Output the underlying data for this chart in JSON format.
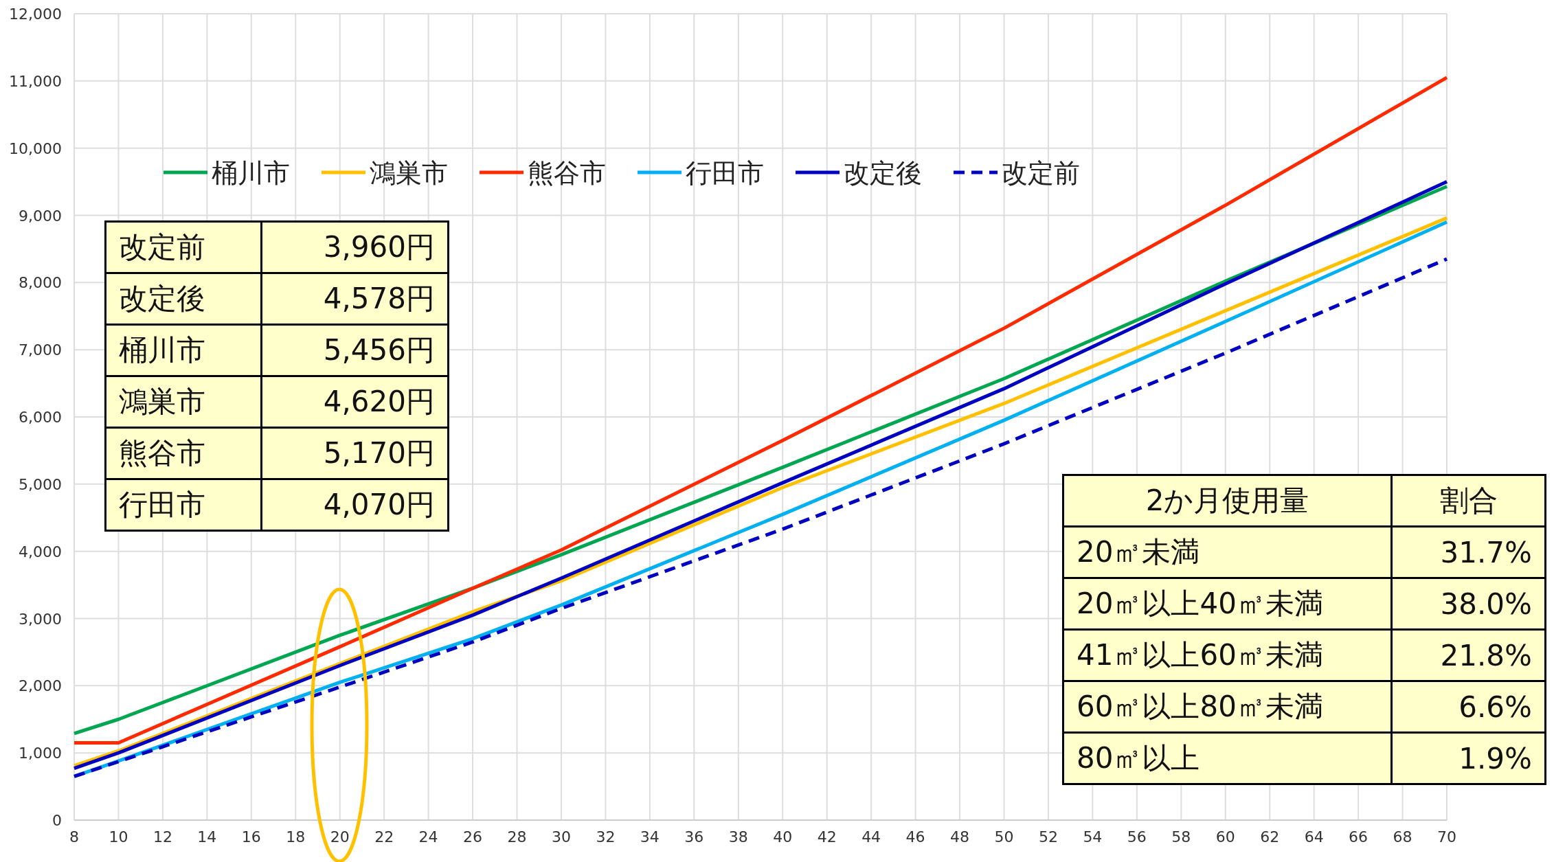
{
  "chart_data": {
    "type": "line",
    "x": [
      8,
      10,
      20,
      26,
      30,
      40,
      50,
      60,
      70
    ],
    "series": [
      {
        "name": "桶川市",
        "color": "#00a650",
        "values": [
          1290,
          1500,
          2750,
          3450,
          3950,
          5250,
          6570,
          8020,
          9430
        ]
      },
      {
        "name": "鴻巣市",
        "color": "#ffc000",
        "values": [
          810,
          1030,
          2330,
          3100,
          3560,
          4950,
          6200,
          7580,
          8960
        ]
      },
      {
        "name": "熊谷市",
        "color": "#ff2a00",
        "values": [
          1150,
          1150,
          2580,
          3450,
          4020,
          5650,
          7320,
          9150,
          11050
        ]
      },
      {
        "name": "行田市",
        "color": "#00b0f0",
        "values": [
          650,
          880,
          2050,
          2700,
          3200,
          4550,
          5950,
          7420,
          8900
        ]
      },
      {
        "name": "改定後",
        "color": "#0000c0",
        "values": [
          770,
          1000,
          2300,
          3050,
          3600,
          5020,
          6420,
          7980,
          9500
        ]
      },
      {
        "name": "改定前",
        "color": "#0000c0",
        "line_style": "dashed",
        "values": [
          650,
          870,
          1980,
          2650,
          3150,
          4330,
          5600,
          6950,
          8350
        ]
      }
    ],
    "xlim": [
      8,
      70
    ],
    "xticks": [
      8,
      10,
      12,
      14,
      16,
      18,
      20,
      22,
      24,
      26,
      28,
      30,
      32,
      34,
      36,
      38,
      40,
      42,
      44,
      46,
      48,
      50,
      52,
      54,
      56,
      58,
      60,
      62,
      64,
      66,
      68,
      70
    ],
    "ylim": [
      0,
      12000
    ],
    "yticks": [
      {
        "value": 0,
        "label": "0"
      },
      {
        "value": 1000,
        "label": "1,000"
      },
      {
        "value": 2000,
        "label": "2,000"
      },
      {
        "value": 3000,
        "label": "3,000"
      },
      {
        "value": 4000,
        "label": "4,000"
      },
      {
        "value": 5000,
        "label": "5,000"
      },
      {
        "value": 6000,
        "label": "6,000"
      },
      {
        "value": 7000,
        "label": "7,000"
      },
      {
        "value": 8000,
        "label": "8,000"
      },
      {
        "value": 9000,
        "label": "9,000"
      },
      {
        "value": 10000,
        "label": "10,000"
      },
      {
        "value": 11000,
        "label": "11,000"
      },
      {
        "value": 12000,
        "label": "12,000"
      }
    ],
    "grid": true,
    "legend": "top",
    "line_style": "solid",
    "annotations": [
      "改定前",
      "3,960円",
      "改定後",
      "4,578円",
      "桶川市",
      "5,456円",
      "鴻巣市",
      "4,620円",
      "熊谷市",
      "5,170円",
      "行田市",
      "4,070円",
      "2か月使用量",
      "割合",
      "20㎥未満",
      "31.7%",
      "20㎥以上40㎥未満",
      "38.0%",
      "41㎥以上60㎥未満",
      "21.8%",
      "60㎥以上80㎥未満",
      "6.6%",
      "80㎥以上",
      "1.9%"
    ]
  }
}
